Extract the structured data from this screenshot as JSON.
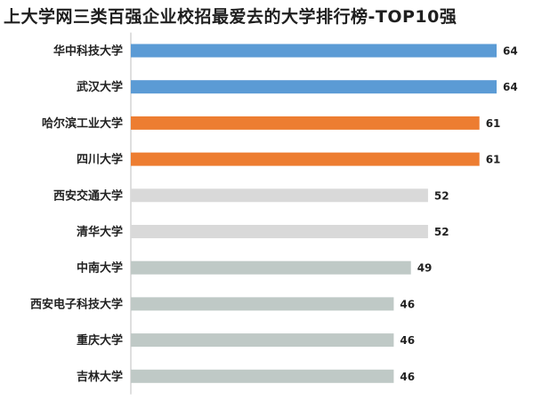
{
  "chart_data": {
    "type": "bar",
    "orientation": "horizontal",
    "title": "上大学网三类百强企业校招最爱去的大学排行榜-TOP10强",
    "categories": [
      "华中科技大学",
      "武汉大学",
      "哈尔滨工业大学",
      "四川大学",
      "西安交通大学",
      "清华大学",
      "中南大学",
      "西安电子科技大学",
      "重庆大学",
      "吉林大学"
    ],
    "values": [
      64,
      64,
      61,
      61,
      52,
      52,
      49,
      46,
      46,
      46
    ],
    "bar_colors": [
      "#5b9bd5",
      "#5b9bd5",
      "#ed7d31",
      "#ed7d31",
      "#d9d9d9",
      "#d9d9d9",
      "#bfc9c6",
      "#bfc9c6",
      "#bfc9c6",
      "#bfc9c6"
    ],
    "data_labels": true,
    "xlim": [
      0,
      64
    ],
    "xlabel": "",
    "ylabel": "",
    "grid": false,
    "axis_line_color": "#bfbfbf"
  }
}
